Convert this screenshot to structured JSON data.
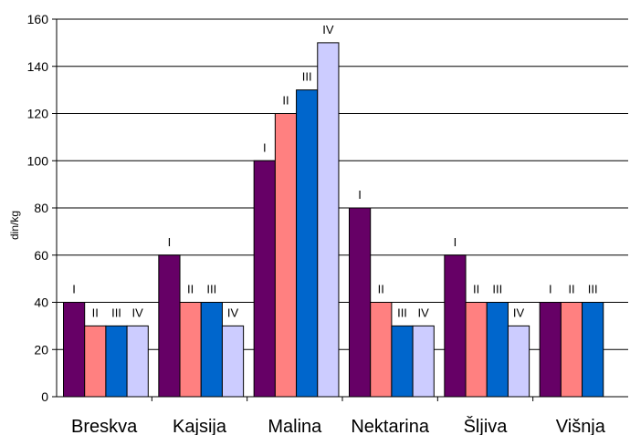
{
  "chart_data": {
    "type": "bar",
    "ylabel": "din/kg",
    "ylim": [
      0,
      160
    ],
    "yticks": [
      0,
      20,
      40,
      60,
      80,
      100,
      120,
      140,
      160
    ],
    "grid": "horizontal",
    "legend": "none",
    "categories": [
      "Breskva",
      "Kajsija",
      "Malina",
      "Nektarina",
      "Šljiva",
      "Višnja"
    ],
    "series": [
      {
        "label": "I",
        "color": "#660066",
        "values": [
          40,
          60,
          100,
          80,
          60,
          40
        ]
      },
      {
        "label": "II",
        "color": "#ff8080",
        "values": [
          30,
          40,
          120,
          40,
          40,
          40
        ]
      },
      {
        "label": "III",
        "color": "#0066cc",
        "values": [
          30,
          40,
          130,
          30,
          40,
          40
        ]
      },
      {
        "label": "IV",
        "color": "#ccccff",
        "values": [
          30,
          30,
          150,
          30,
          30,
          null
        ]
      }
    ]
  }
}
